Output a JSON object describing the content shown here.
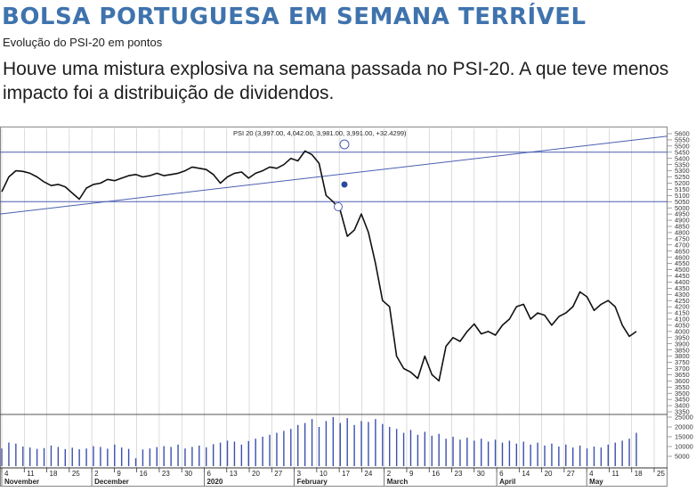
{
  "headline": "BOLSA PORTUGUESA EM SEMANA TERRÍVEL",
  "subtitle": "Evolução do PSI-20 em pontos",
  "lead": "Houve uma mistura explosiva na semana passada no PSI-20. A que teve menos impacto foi a distribuição de dividendos.",
  "colors": {
    "headline": "#3f73ad",
    "price_line": "#111111",
    "trend_line": "#4a5fb0",
    "volume_bar": "#3b4fae"
  },
  "chart_data": {
    "type": "line",
    "chart_title": "PSI 20 (3,997.00, 4,042.00, 3,981.00, 3,991.00, +32.4299)",
    "y_axis": {
      "min": 3350,
      "max": 5600,
      "step": 50,
      "position": "right"
    },
    "volume_axis": {
      "min": 0,
      "max": 25000,
      "ticks": [
        5000,
        10000,
        15000,
        20000,
        25000
      ],
      "position": "right"
    },
    "x_ticks": [
      "4",
      "11",
      "18",
      "25",
      "2",
      "9",
      "16",
      "23",
      "30",
      "6",
      "13",
      "20",
      "27",
      "3",
      "10",
      "17",
      "24",
      "2",
      "9",
      "16",
      "23",
      "30",
      "6",
      "14",
      "20",
      "27",
      "4",
      "11",
      "18",
      "25"
    ],
    "x_months": [
      "November",
      "December",
      "2020",
      "February",
      "March",
      "April",
      "May"
    ],
    "price": {
      "name": "PSI 20",
      "values": [
        5130,
        5250,
        5300,
        5295,
        5280,
        5250,
        5210,
        5180,
        5190,
        5170,
        5120,
        5070,
        5160,
        5190,
        5200,
        5230,
        5220,
        5240,
        5260,
        5270,
        5250,
        5260,
        5280,
        5260,
        5270,
        5280,
        5300,
        5330,
        5320,
        5310,
        5270,
        5200,
        5250,
        5280,
        5290,
        5240,
        5280,
        5300,
        5330,
        5320,
        5350,
        5400,
        5380,
        5460,
        5430,
        5360,
        5100,
        5050,
        4980,
        4770,
        4820,
        4950,
        4800,
        4550,
        4250,
        4200,
        3800,
        3700,
        3670,
        3620,
        3800,
        3650,
        3600,
        3880,
        3950,
        3920,
        4000,
        4060,
        3980,
        4000,
        3970,
        4050,
        4100,
        4200,
        4220,
        4100,
        4150,
        4130,
        4050,
        4120,
        4150,
        4200,
        4320,
        4280,
        4170,
        4220,
        4250,
        4200,
        4050,
        3960,
        4000
      ]
    },
    "horizontal_lines": [
      5450,
      5050
    ],
    "trend_line": {
      "start": 4950,
      "end": 5580
    },
    "volume": {
      "values": [
        9000,
        12000,
        11500,
        10000,
        9500,
        8800,
        9200,
        10500,
        9800,
        8700,
        9400,
        8600,
        9000,
        10200,
        9800,
        8900,
        11000,
        9500,
        8800,
        4000,
        8500,
        9000,
        9700,
        10200,
        9800,
        11000,
        9000,
        9800,
        10500,
        9600,
        11200,
        12000,
        13000,
        12500,
        11000,
        12800,
        14000,
        15000,
        16000,
        17000,
        18000,
        19000,
        21000,
        22000,
        24000,
        20000,
        23000,
        25000,
        22000,
        24500,
        21000,
        23000,
        22500,
        24000,
        21500,
        20000,
        19000,
        17000,
        18500,
        16000,
        17500,
        15500,
        16500,
        14000,
        15000,
        13500,
        14500,
        13000,
        14000,
        12500,
        13500,
        12000,
        13000,
        11500,
        12500,
        11000,
        12000,
        10500,
        11500,
        10000,
        11000,
        9500,
        10500,
        9000,
        10000,
        9500,
        11000,
        12000,
        13000,
        14000,
        17000
      ]
    }
  }
}
